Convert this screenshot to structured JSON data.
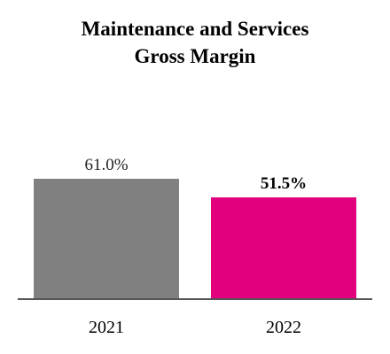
{
  "chart_data": {
    "type": "bar",
    "title_lines": [
      "Maintenance and Services",
      "Gross Margin"
    ],
    "categories": [
      "2021",
      "2022"
    ],
    "values": [
      61.0,
      51.5
    ],
    "value_labels": [
      "61.0%",
      "51.5%"
    ],
    "label_bold": [
      false,
      true
    ],
    "colors": [
      "#808080",
      "#e2007f"
    ],
    "axis_color": "#555555",
    "ylim": [
      0,
      80
    ],
    "grid": false,
    "legend": "none"
  }
}
